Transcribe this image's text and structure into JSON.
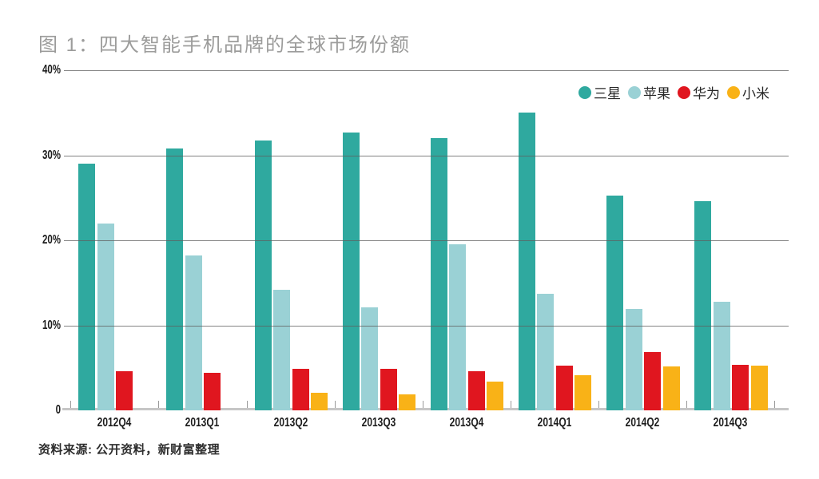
{
  "page": {
    "title": "图 1：四大智能手机品牌的全球市场份额",
    "source_note": "资料来源: 公开资料，新财富整理"
  },
  "colors": {
    "samsung": "#2FA99F",
    "apple": "#9AD1D5",
    "huawei": "#E0161F",
    "xiaomi": "#F9B217",
    "title_gray": "#9C9C9B",
    "gridline_gray": "#8F8F8F",
    "baseline_gray": "#C6C6C6"
  },
  "chart_data": {
    "type": "bar",
    "title": "图 1：四大智能手机品牌的全球市场份额",
    "categories": [
      "2012Q4",
      "2013Q1",
      "2013Q2",
      "2013Q3",
      "2013Q4",
      "2014Q1",
      "2014Q2",
      "2014Q3"
    ],
    "series": [
      {
        "name": "三星",
        "key": "samsung",
        "color": "#2FA99F",
        "values": [
          29.0,
          30.8,
          31.7,
          32.7,
          32.0,
          35.0,
          25.3,
          24.6
        ]
      },
      {
        "name": "苹果",
        "key": "apple",
        "color": "#9AD1D5",
        "values": [
          22.0,
          18.2,
          14.2,
          12.1,
          19.5,
          13.7,
          11.9,
          12.8
        ]
      },
      {
        "name": "华为",
        "key": "huawei",
        "color": "#E0161F",
        "values": [
          4.6,
          4.4,
          4.9,
          4.9,
          4.6,
          5.3,
          6.9,
          5.4
        ]
      },
      {
        "name": "小米",
        "key": "xiaomi",
        "color": "#F9B217",
        "values": [
          null,
          null,
          2.1,
          1.9,
          3.4,
          4.1,
          5.2,
          5.3
        ]
      }
    ],
    "xlabel": "",
    "ylabel": "",
    "ylim": [
      0,
      40
    ],
    "yticks": [
      {
        "value": 0,
        "label": "0"
      },
      {
        "value": 10,
        "label": "10%"
      },
      {
        "value": 20,
        "label": "20%"
      },
      {
        "value": 30,
        "label": "30%"
      },
      {
        "value": 40,
        "label": "40%"
      }
    ],
    "grid": true,
    "legend_position": "top-right",
    "source": "资料来源: 公开资料，新财富整理"
  }
}
